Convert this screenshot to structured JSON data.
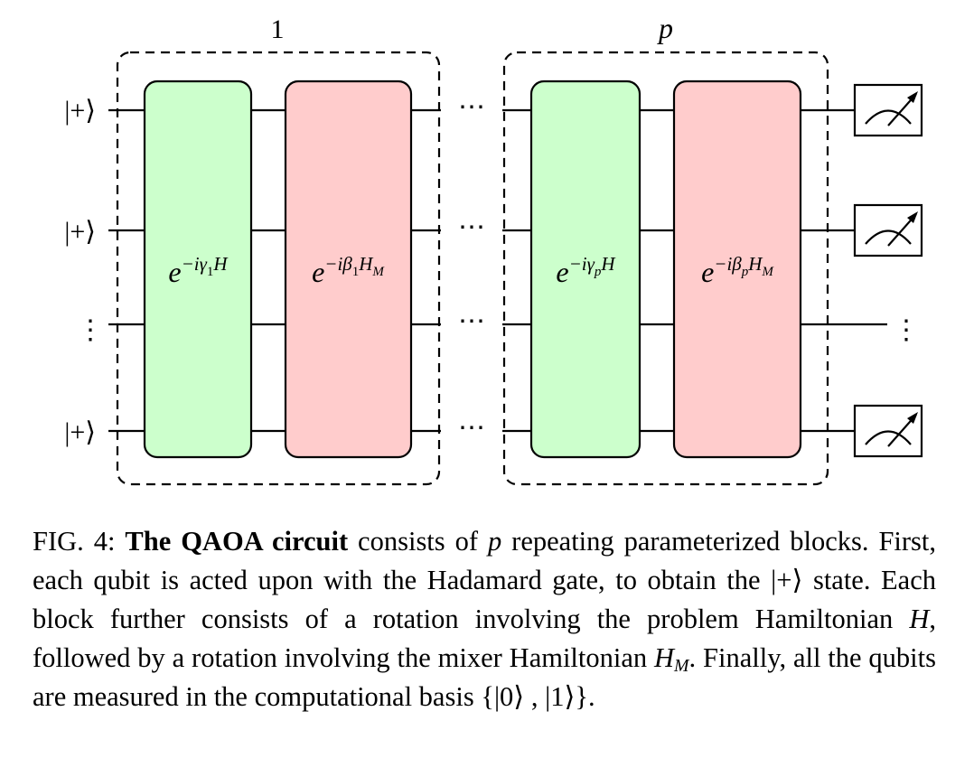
{
  "circuit": {
    "block_labels": [
      "1",
      "p"
    ],
    "input_states": [
      "|+⟩",
      "|+⟩",
      "⋮",
      "|+⟩"
    ],
    "gates": [
      {
        "base": "e",
        "exp_prefix": "−iγ",
        "exp_sub": "1",
        "exp_suffix": "H",
        "exp_suffix_sub": "",
        "color": "#ccffcc"
      },
      {
        "base": "e",
        "exp_prefix": "−iβ",
        "exp_sub": "1",
        "exp_suffix": "H",
        "exp_suffix_sub": "M",
        "color": "#ffcccc"
      },
      {
        "base": "e",
        "exp_prefix": "−iγ",
        "exp_sub": "p",
        "exp_suffix": "H",
        "exp_suffix_sub": "",
        "color": "#ccffcc"
      },
      {
        "base": "e",
        "exp_prefix": "−iβ",
        "exp_sub": "p",
        "exp_suffix": "H",
        "exp_suffix_sub": "M",
        "color": "#ffcccc"
      }
    ],
    "gap_symbol": "⋯",
    "output_vdots": "⋮",
    "measurement_count": 3
  },
  "caption": {
    "label": "FIG. 4:",
    "title": "The QAOA circuit",
    "t1": " consists of ",
    "p": "p",
    "t2": " repeating parameterized blocks. First, each qubit is acted upon with the Hadamard gate, to obtain the ",
    "plus_state": "|+⟩",
    "t3": " state. Each block further consists of a rotation involving the problem Hamiltonian ",
    "H": "H",
    "t4": ", followed by a rotation involving the mixer Hamiltonian ",
    "HM": "H",
    "HM_sub": "M",
    "t5": ". Finally, all the qubits are measured in the computational basis ",
    "basis": "{|0⟩ , |1⟩}",
    "t6": "."
  }
}
